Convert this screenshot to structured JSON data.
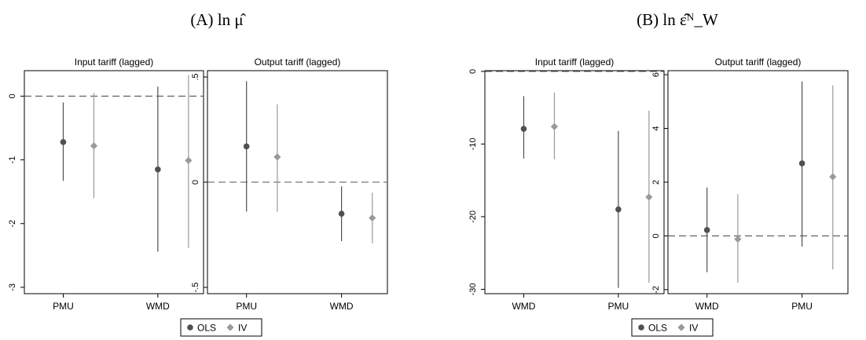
{
  "colors": {
    "ols": "#505050",
    "iv": "#9a9a9a",
    "axis": "#000000",
    "zero_line": "#555555"
  },
  "figure": {
    "legend": {
      "items": [
        "OLS",
        "IV"
      ],
      "markers": [
        "circle",
        "diamond"
      ]
    },
    "panels": [
      {
        "title": "(A) ln μ̂"
      },
      {
        "title": "(B) ln ε̂ᴺ_W"
      }
    ]
  },
  "chart_data": [
    {
      "type": "scatter",
      "panel": "A",
      "subtitle": "Input tariff (lagged)",
      "categories": [
        "PMU",
        "WMD"
      ],
      "ylim": [
        -3.1,
        0.4
      ],
      "yticks": [
        0,
        -1,
        -2,
        -3
      ],
      "ytick_labels": [
        "0",
        "-1",
        "-2",
        "-3"
      ],
      "zero_line": 0,
      "series": [
        {
          "name": "OLS",
          "values": [
            -0.72,
            -1.15
          ],
          "ci_low": [
            -1.33,
            -2.44
          ],
          "ci_high": [
            -0.1,
            0.15
          ]
        },
        {
          "name": "IV",
          "values": [
            -0.78,
            -1.01
          ],
          "ci_low": [
            -1.6,
            -2.38
          ],
          "ci_high": [
            0.05,
            0.33
          ]
        }
      ]
    },
    {
      "type": "scatter",
      "panel": "A",
      "subtitle": "Output tariff (lagged)",
      "categories": [
        "PMU",
        "WMD"
      ],
      "ylim": [
        -0.53,
        0.53
      ],
      "yticks": [
        0.5,
        0,
        -0.5
      ],
      "ytick_labels": [
        ".5",
        "0",
        "-.5"
      ],
      "zero_line": 0,
      "series": [
        {
          "name": "OLS",
          "values": [
            0.17,
            -0.15
          ],
          "ci_low": [
            -0.14,
            -0.28
          ],
          "ci_high": [
            0.48,
            -0.02
          ]
        },
        {
          "name": "IV",
          "values": [
            0.12,
            -0.17
          ],
          "ci_low": [
            -0.14,
            -0.29
          ],
          "ci_high": [
            0.37,
            -0.05
          ]
        }
      ]
    },
    {
      "type": "scatter",
      "panel": "B",
      "subtitle": "Input tariff (lagged)",
      "categories": [
        "WMD",
        "PMU"
      ],
      "ylim": [
        -30.6,
        0.1
      ],
      "yticks": [
        0,
        -10,
        -20,
        -30
      ],
      "ytick_labels": [
        "0",
        "-10",
        "-20",
        "-30"
      ],
      "zero_line": 0,
      "series": [
        {
          "name": "OLS",
          "values": [
            -7.9,
            -19.0
          ],
          "ci_low": [
            -12.0,
            -29.8
          ],
          "ci_high": [
            -3.4,
            -8.2
          ]
        },
        {
          "name": "IV",
          "values": [
            -7.6,
            -17.3
          ],
          "ci_low": [
            -12.1,
            -29.1
          ],
          "ci_high": [
            -2.9,
            -5.4
          ]
        }
      ]
    },
    {
      "type": "scatter",
      "panel": "B",
      "subtitle": "Output tariff (lagged)",
      "categories": [
        "WMD",
        "PMU"
      ],
      "ylim": [
        -2.15,
        6.15
      ],
      "yticks": [
        6,
        4,
        2,
        0,
        -2
      ],
      "ytick_labels": [
        "6",
        "4",
        "2",
        "0",
        "-2"
      ],
      "zero_line": 0,
      "series": [
        {
          "name": "OLS",
          "values": [
            0.22,
            2.7
          ],
          "ci_low": [
            -1.35,
            -0.4
          ],
          "ci_high": [
            1.8,
            5.75
          ]
        },
        {
          "name": "IV",
          "values": [
            -0.12,
            2.2
          ],
          "ci_low": [
            -1.75,
            -1.25
          ],
          "ci_high": [
            1.55,
            5.6
          ]
        }
      ]
    }
  ]
}
